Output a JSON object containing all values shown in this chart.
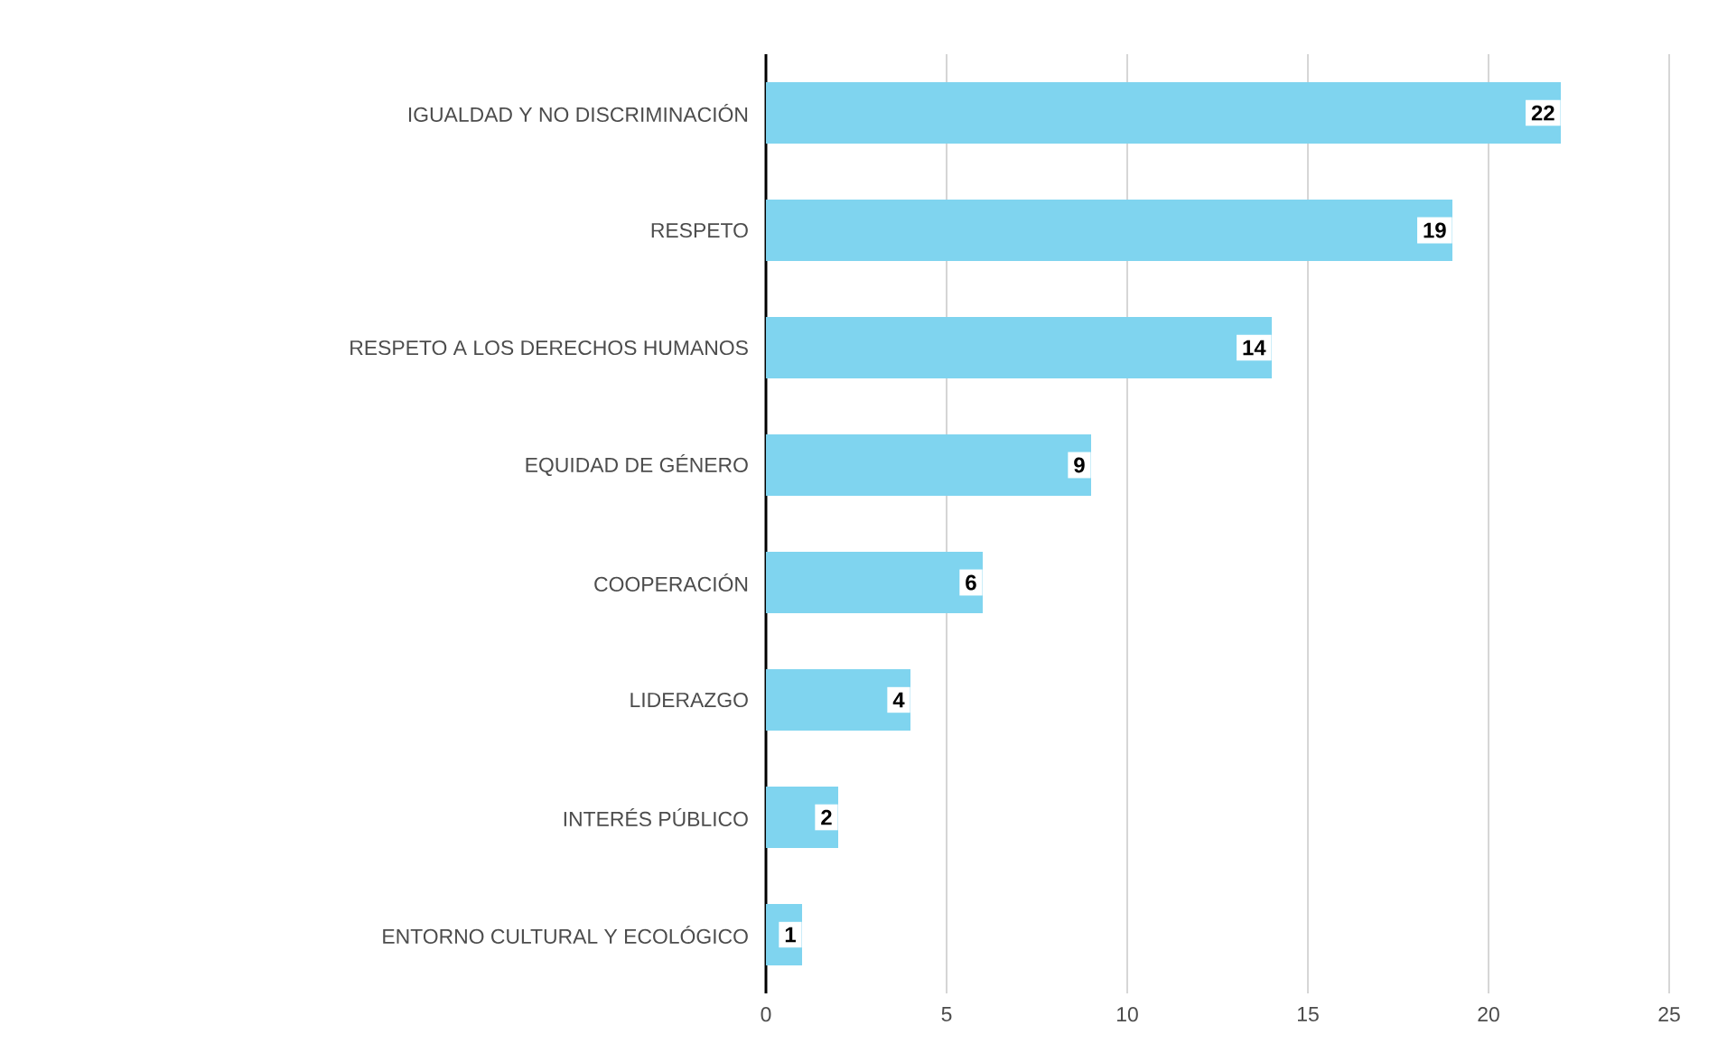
{
  "chart_data": {
    "type": "bar",
    "orientation": "horizontal",
    "categories": [
      "IGUALDAD Y NO DISCRIMINACIÓN",
      "RESPETO",
      "RESPETO A LOS DERECHOS HUMANOS",
      "EQUIDAD DE GÉNERO",
      "COOPERACIÓN",
      "LIDERAZGO",
      "INTERÉS PÚBLICO",
      "ENTORNO CULTURAL Y ECOLÓGICO"
    ],
    "values": [
      22,
      19,
      14,
      9,
      6,
      4,
      2,
      1
    ],
    "color": "#7fd4ef",
    "xlim": [
      0,
      25
    ],
    "xticks": [
      0,
      5,
      10,
      15,
      20,
      25
    ],
    "grid": "x",
    "data_labels": true
  }
}
